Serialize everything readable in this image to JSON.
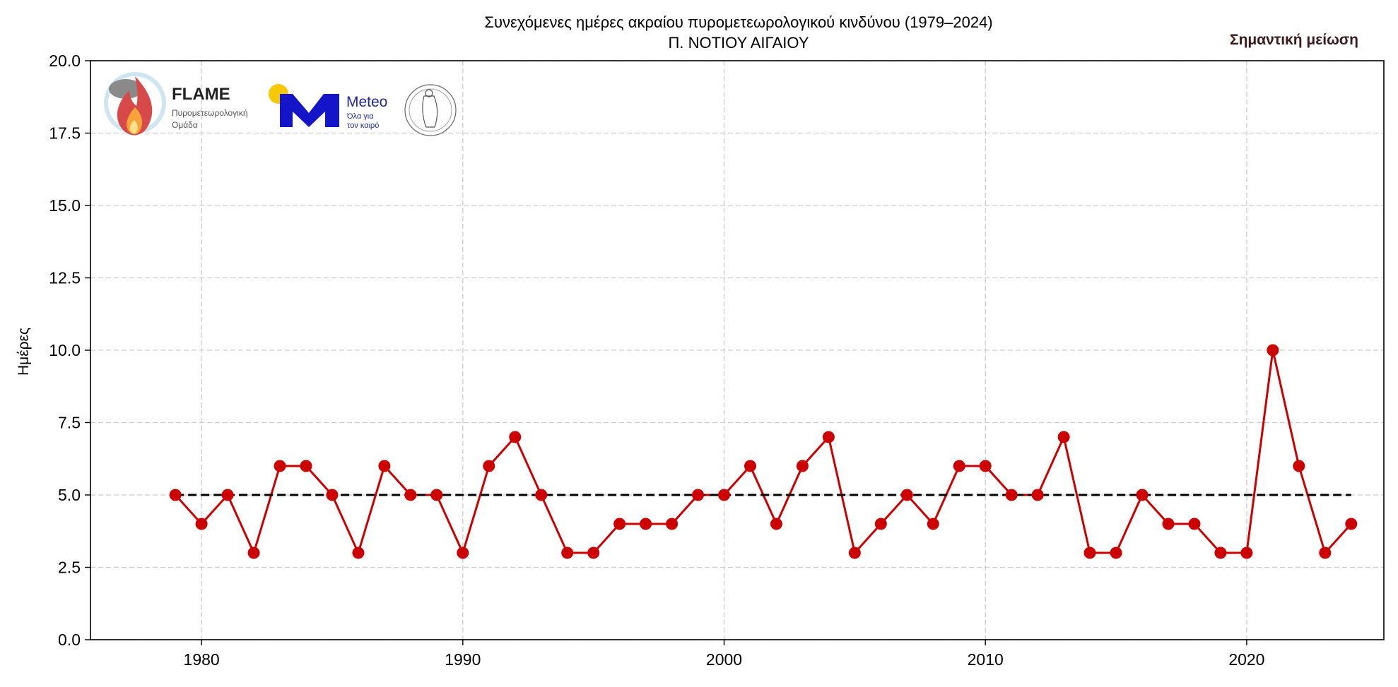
{
  "chart_data": {
    "type": "line",
    "title": "Συνεχόμενες ημέρες ακραίου πυρομετεωρολογικού κινδύνου (1979–2024)",
    "subtitle": "Π. ΝΟΤΙΟΥ ΑΙΓΑΙΟΥ",
    "xlabel": "",
    "ylabel": "Ημέρες",
    "annotation": "Σημαντική μείωση",
    "xlim": [
      1975.75,
      2025.25
    ],
    "ylim": [
      0,
      20
    ],
    "xticks": [
      1980,
      1990,
      2000,
      2010,
      2020
    ],
    "yticks": [
      "0.0",
      "2.5",
      "5.0",
      "7.5",
      "10.0",
      "12.5",
      "15.0",
      "17.5",
      "20.0"
    ],
    "grid": true,
    "x": [
      1979,
      1980,
      1981,
      1982,
      1983,
      1984,
      1985,
      1986,
      1987,
      1988,
      1989,
      1990,
      1991,
      1992,
      1993,
      1994,
      1995,
      1996,
      1997,
      1998,
      1999,
      2000,
      2001,
      2002,
      2003,
      2004,
      2005,
      2006,
      2007,
      2008,
      2009,
      2010,
      2011,
      2012,
      2013,
      2014,
      2015,
      2016,
      2017,
      2018,
      2019,
      2020,
      2021,
      2022,
      2023,
      2024
    ],
    "series": [
      {
        "name": "Ημέρες",
        "color": "#cc0000",
        "values": [
          5,
          4,
          5,
          3,
          6,
          6,
          5,
          3,
          6,
          5,
          5,
          3,
          6,
          7,
          5,
          3,
          3,
          4,
          4,
          4,
          5,
          5,
          6,
          4,
          6,
          7,
          3,
          4,
          5,
          4,
          6,
          6,
          5,
          5,
          7,
          3,
          3,
          5,
          4,
          4,
          3,
          3,
          10,
          6,
          3,
          4
        ]
      },
      {
        "name": "Trend",
        "color": "#000000",
        "style": "dashed",
        "x": [
          1979,
          2024
        ],
        "values": [
          5,
          5
        ]
      }
    ]
  },
  "logos": {
    "flame": {
      "title": "FLAME",
      "line1": "Πυρομετεωρολογική",
      "line2": "Ομάδα"
    },
    "meteo": {
      "name": "Meteo",
      "line1": "Όλα για",
      "line2": "τον καιρό",
      "accent": "#1414c8",
      "sun": "#f6c800"
    }
  }
}
